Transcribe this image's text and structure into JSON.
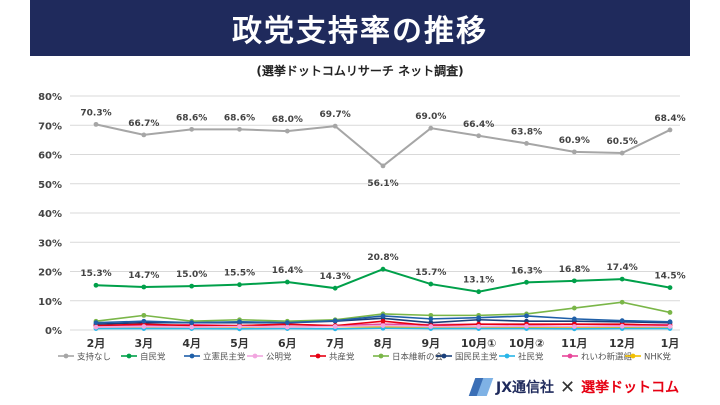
{
  "header": {
    "title": "政党支持率の推移",
    "subtitle": "(選挙ドットコムリサーチ ネット調査)"
  },
  "logos": {
    "jx_name": "JX通信社",
    "times": "✕",
    "senkyo_name": "選挙ドットコム"
  },
  "chart_data": {
    "type": "line",
    "title": "政党支持率の推移",
    "subtitle": "(選挙ドットコムリサーチ ネット調査)",
    "categories": [
      "2月",
      "3月",
      "4月",
      "5月",
      "6月",
      "7月",
      "8月",
      "9月",
      "10月①",
      "10月②",
      "11月",
      "12月",
      "1月"
    ],
    "ylim": [
      0,
      80
    ],
    "yticks": [
      "0%",
      "10%",
      "20%",
      "30%",
      "40%",
      "50%",
      "60%",
      "70%",
      "80%"
    ],
    "grid": true,
    "legend_position": "bottom",
    "series": [
      {
        "name": "支持なし",
        "color": "#a6a6a6",
        "labeled": true,
        "values": [
          70.3,
          66.7,
          68.6,
          68.6,
          68.0,
          69.7,
          56.1,
          69.0,
          66.4,
          63.8,
          60.9,
          60.5,
          68.4
        ],
        "labels": [
          "70.3%",
          "66.7%",
          "68.6%",
          "68.6%",
          "68.0%",
          "69.7%",
          "56.1%",
          "69.0%",
          "66.4%",
          "63.8%",
          "60.9%",
          "60.5%",
          "68.4%"
        ]
      },
      {
        "name": "自民党",
        "color": "#00a04a",
        "labeled": true,
        "values": [
          15.3,
          14.7,
          15.0,
          15.5,
          16.4,
          14.3,
          20.8,
          15.7,
          13.1,
          16.3,
          16.8,
          17.4,
          14.5
        ],
        "labels": [
          "15.3%",
          "14.7%",
          "15.0%",
          "15.5%",
          "16.4%",
          "14.3%",
          "20.8%",
          "15.7%",
          "13.1%",
          "16.3%",
          "16.8%",
          "17.4%",
          "14.5%"
        ]
      },
      {
        "name": "立憲民主党",
        "color": "#1f5fa8",
        "labeled": false,
        "values": [
          2.5,
          3.0,
          2.5,
          2.8,
          2.5,
          3.2,
          4.8,
          3.8,
          4.2,
          4.8,
          3.8,
          3.2,
          2.8
        ]
      },
      {
        "name": "公明党",
        "color": "#f2a6e0",
        "labeled": false,
        "values": [
          1.0,
          1.2,
          1.0,
          1.2,
          1.0,
          1.2,
          1.5,
          1.2,
          1.2,
          1.3,
          1.2,
          1.3,
          1.2
        ]
      },
      {
        "name": "共産党",
        "color": "#e60012",
        "labeled": false,
        "values": [
          1.5,
          2.0,
          1.5,
          1.5,
          2.0,
          1.5,
          3.0,
          1.5,
          2.0,
          2.0,
          2.0,
          2.0,
          1.5
        ]
      },
      {
        "name": "日本維新の会",
        "color": "#7ab648",
        "labeled": false,
        "values": [
          3.0,
          5.0,
          3.0,
          3.5,
          3.0,
          3.5,
          5.5,
          5.0,
          5.0,
          5.5,
          7.5,
          9.5,
          6.0
        ]
      },
      {
        "name": "国民民主党",
        "color": "#1a3f7a",
        "labeled": false,
        "values": [
          2.0,
          2.5,
          2.5,
          2.5,
          2.5,
          3.0,
          4.0,
          2.5,
          3.5,
          3.0,
          3.0,
          2.8,
          2.5
        ]
      },
      {
        "name": "社民党",
        "color": "#29b6e8",
        "labeled": false,
        "values": [
          0.5,
          0.5,
          0.5,
          0.4,
          0.5,
          0.4,
          0.6,
          0.5,
          0.5,
          0.5,
          0.4,
          0.5,
          0.5
        ]
      },
      {
        "name": "れいわ新選組",
        "color": "#e8469a",
        "labeled": false,
        "values": [
          1.5,
          1.5,
          1.8,
          1.5,
          1.8,
          1.5,
          2.0,
          1.8,
          2.0,
          1.8,
          2.0,
          1.8,
          1.8
        ]
      },
      {
        "name": "NHK党",
        "color": "#f2c000",
        "labeled": false,
        "values": [
          1.0,
          1.0,
          1.0,
          1.0,
          1.0,
          1.2,
          1.0,
          1.0,
          1.0,
          0.8,
          1.0,
          0.8,
          0.8
        ]
      }
    ]
  }
}
